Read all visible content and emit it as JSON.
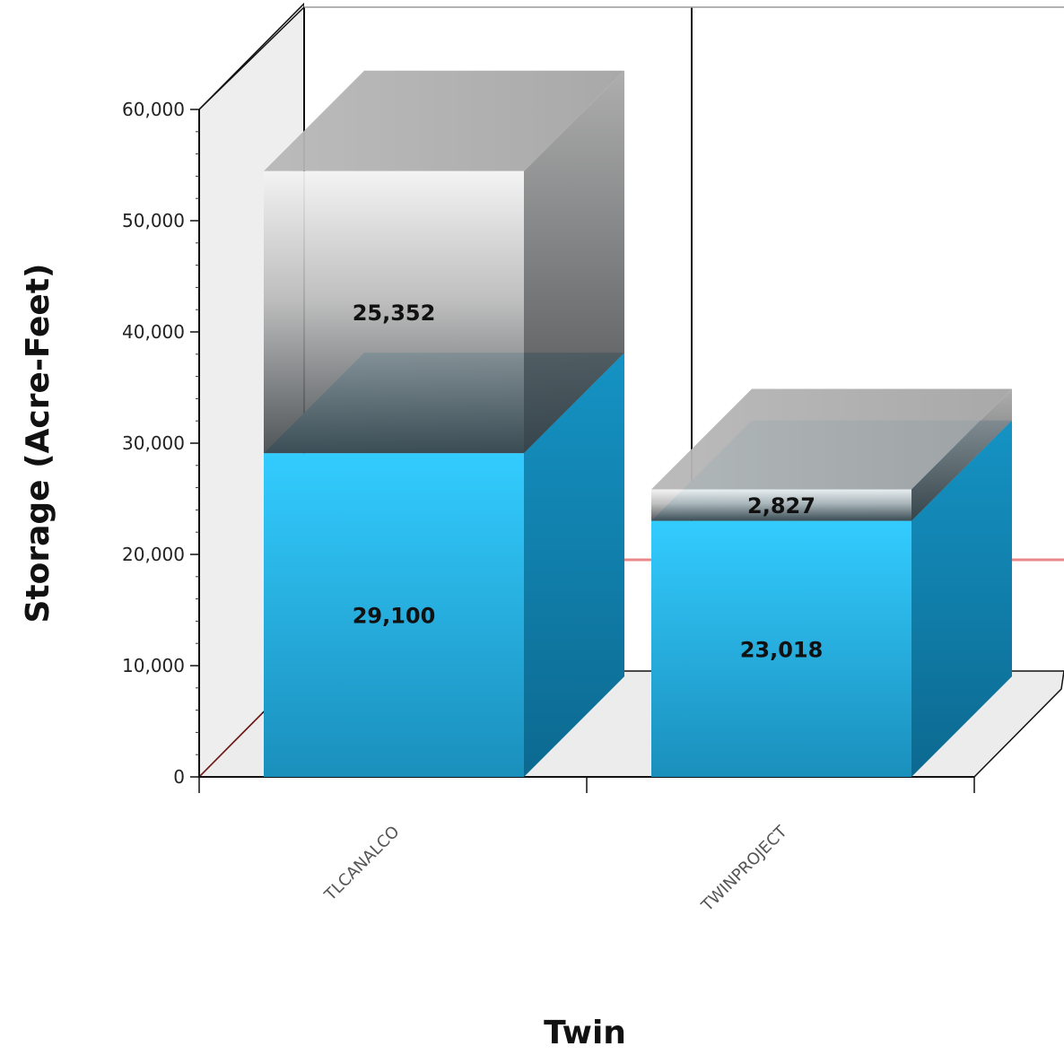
{
  "chart_data": {
    "type": "bar",
    "stacked": true,
    "three_d": true,
    "categories": [
      "TLCANALCO",
      "TWINPROJECT"
    ],
    "series": [
      {
        "values": [
          29100,
          23018
        ],
        "color": "#2bbbe8"
      },
      {
        "values": [
          25352,
          2827
        ],
        "color": "#8a8e92"
      }
    ],
    "data_labels": [
      [
        "29,100",
        "23,018"
      ],
      [
        "25,352",
        "2,827"
      ]
    ],
    "xlabel": "Twin",
    "ylabel": "Storage (Acre-Feet)",
    "ylim": [
      0,
      60000
    ],
    "yticks": [
      0,
      10000,
      20000,
      30000,
      40000,
      50000,
      60000
    ],
    "ytick_labels": [
      "0",
      "10,000",
      "20,000",
      "30,000",
      "40,000",
      "50,000",
      "60,000"
    ],
    "reference_line": {
      "value": 10000,
      "color": "#e88888"
    },
    "grid": false,
    "legend": "none"
  }
}
